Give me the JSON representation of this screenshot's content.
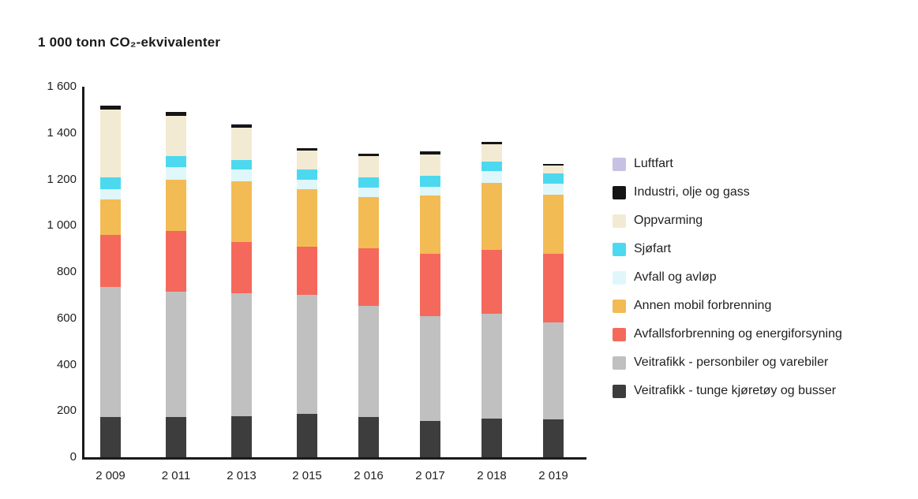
{
  "title": "1 000 tonn CO₂-ekvivalenter",
  "colors": {
    "axis": "#1a1a1a",
    "background": "#ffffff"
  },
  "chart_data": {
    "type": "bar",
    "stacked": true,
    "title": "1 000 tonn CO₂-ekvivalenter",
    "xlabel": "",
    "ylabel": "1 000 tonn CO₂-ekvivalenter",
    "ylim": [
      0,
      1600
    ],
    "y_tick_interval": 200,
    "y_tick_labels": [
      "1 600",
      "1 400",
      "1 200",
      "1 000",
      "800",
      "600",
      "400",
      "200",
      "0"
    ],
    "grid": false,
    "legend_position": "right",
    "categories": [
      "2 009",
      "2 011",
      "2 013",
      "2 015",
      "2 016",
      "2 017",
      "2 018",
      "2 019"
    ],
    "series": [
      {
        "name": "Luftfart",
        "color": "#c7c2e4",
        "values": [
          2,
          2,
          2,
          2,
          2,
          2,
          2,
          2
        ]
      },
      {
        "name": "Industri, olje og gass",
        "color": "#151515",
        "values": [
          17,
          17,
          13,
          10,
          10,
          13,
          10,
          7
        ]
      },
      {
        "name": "Oppvarming",
        "color": "#f3ead3",
        "values": [
          293,
          171,
          140,
          82,
          92,
          92,
          75,
          34
        ]
      },
      {
        "name": "Sjøfart",
        "color": "#4cd9ef",
        "values": [
          51,
          48,
          41,
          44,
          44,
          48,
          41,
          44
        ]
      },
      {
        "name": "Avfall og avløp",
        "color": "#dff7fb",
        "values": [
          45,
          54,
          51,
          41,
          41,
          38,
          51,
          48
        ]
      },
      {
        "name": "Annen mobil forbrenning",
        "color": "#f3bb54",
        "values": [
          153,
          222,
          263,
          249,
          222,
          252,
          290,
          256
        ]
      },
      {
        "name": "Avfallsforbrenning og energiforsyning",
        "color": "#f5685c",
        "values": [
          222,
          263,
          222,
          205,
          246,
          266,
          276,
          294
        ]
      },
      {
        "name": "Veitrafikk - personbiler og varebiler",
        "color": "#c0c0c0",
        "values": [
          565,
          540,
          529,
          515,
          481,
          454,
          451,
          419
        ]
      },
      {
        "name": "Veitrafikk - tunge kjøretøy og busser",
        "color": "#3d3d3d",
        "values": [
          172,
          175,
          178,
          188,
          174,
          157,
          167,
          164
        ]
      }
    ],
    "totals": [
      1520,
      1492,
      1439,
      1336,
      1312,
      1322,
      1363,
      1268
    ]
  }
}
